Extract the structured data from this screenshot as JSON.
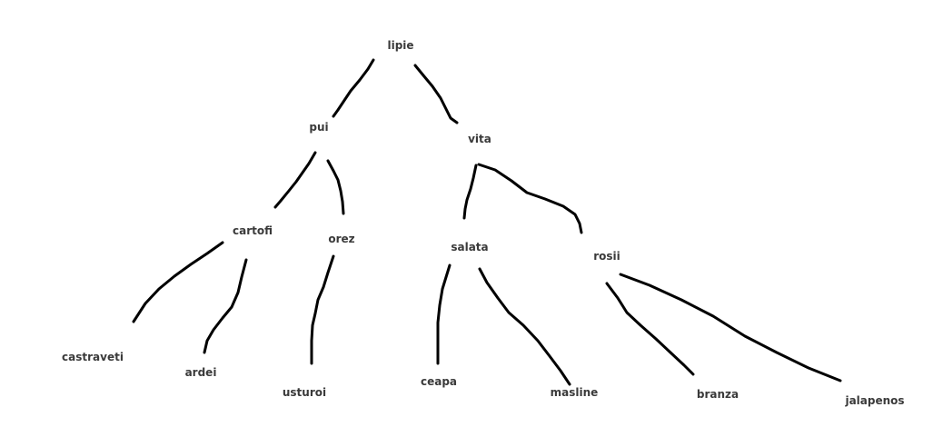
{
  "tree": {
    "nodes": [
      {
        "id": "lipie",
        "label": "lipie"
      },
      {
        "id": "pui",
        "label": "pui"
      },
      {
        "id": "vita",
        "label": "vita"
      },
      {
        "id": "cartofi",
        "label": "cartofi"
      },
      {
        "id": "orez",
        "label": "orez"
      },
      {
        "id": "salata",
        "label": "salata"
      },
      {
        "id": "rosii",
        "label": "rosii"
      },
      {
        "id": "castraveti",
        "label": "castraveti"
      },
      {
        "id": "ardei",
        "label": "ardei"
      },
      {
        "id": "usturoi",
        "label": "usturoi"
      },
      {
        "id": "ceapa",
        "label": "ceapa"
      },
      {
        "id": "masline",
        "label": "masline"
      },
      {
        "id": "branza",
        "label": "branza"
      },
      {
        "id": "jalapenos",
        "label": "jalapenos"
      }
    ],
    "edges": [
      {
        "from": "lipie",
        "to": "pui"
      },
      {
        "from": "lipie",
        "to": "vita"
      },
      {
        "from": "pui",
        "to": "cartofi"
      },
      {
        "from": "pui",
        "to": "orez"
      },
      {
        "from": "vita",
        "to": "salata"
      },
      {
        "from": "vita",
        "to": "rosii"
      },
      {
        "from": "cartofi",
        "to": "castraveti"
      },
      {
        "from": "cartofi",
        "to": "ardei"
      },
      {
        "from": "orez",
        "to": "usturoi"
      },
      {
        "from": "salata",
        "to": "ceapa"
      },
      {
        "from": "salata",
        "to": "masline"
      },
      {
        "from": "rosii",
        "to": "branza"
      },
      {
        "from": "rosii",
        "to": "jalapenos"
      }
    ]
  }
}
